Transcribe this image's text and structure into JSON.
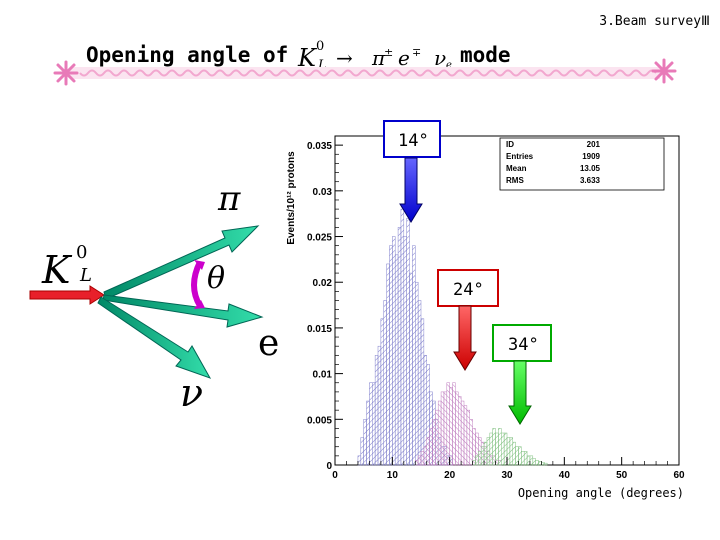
{
  "header": {
    "section_label": "3.Beam surveyⅢ"
  },
  "title": {
    "prefix": "Opening angle of",
    "decay_K": "K",
    "decay_K_sup": "0",
    "decay_K_sub": "L",
    "decay_arrow": "→",
    "decay_pi": "π",
    "decay_pi_sup": "±",
    "decay_e": "e",
    "decay_e_sup": "∓",
    "decay_nu": "ν",
    "decay_nu_sub": "e",
    "suffix": "mode"
  },
  "diagram": {
    "kaon_K": "K",
    "kaon_sup": "0",
    "kaon_sub": "L",
    "pion": "π",
    "electron": "e",
    "neutrino": "ν",
    "angle": "θ"
  },
  "annotations": [
    {
      "text": "14°",
      "value": 14,
      "color": "#0000cc"
    },
    {
      "text": "24°",
      "value": 24,
      "color": "#cc0000"
    },
    {
      "text": "34°",
      "value": 34,
      "color": "#00aa00"
    }
  ],
  "chart_data": {
    "type": "histogram",
    "xlabel": "Opening angle (degrees)",
    "ylabel": "Events/10¹² protons",
    "xlim": [
      0,
      60
    ],
    "ylim": [
      0,
      0.036
    ],
    "x_ticks": [
      0,
      10,
      20,
      30,
      40,
      50,
      60
    ],
    "y_ticks": [
      0,
      0.005,
      0.01,
      0.015,
      0.02,
      0.025,
      0.03,
      0.035
    ],
    "y_tick_labels": [
      "0",
      "0.005",
      "0.01",
      "0.015",
      "0.02",
      "0.025",
      "0.03",
      "0.035"
    ],
    "stats_box": [
      {
        "key": "ID",
        "value": "201"
      },
      {
        "key": "Entries",
        "value": "1909"
      },
      {
        "key": "Mean",
        "value": "13.05"
      },
      {
        "key": "RMS",
        "value": "3.633"
      }
    ],
    "bin_width": 0.5,
    "series": [
      {
        "color": "#8080cc",
        "x_start": 4,
        "values": [
          0.001,
          0.003,
          0.005,
          0.007,
          0.009,
          0.009,
          0.012,
          0.013,
          0.016,
          0.018,
          0.022,
          0.024,
          0.025,
          0.023,
          0.026,
          0.028,
          0.025,
          0.027,
          0.021,
          0.024,
          0.02,
          0.018,
          0.016,
          0.012,
          0.011,
          0.008,
          0.007,
          0.005,
          0.003,
          0.002,
          0.002,
          0.001,
          0.001
        ]
      },
      {
        "color": "#c080c0",
        "x_start": 14,
        "values": [
          0.0005,
          0.001,
          0.0015,
          0.002,
          0.003,
          0.004,
          0.005,
          0.006,
          0.007,
          0.008,
          0.008,
          0.009,
          0.0085,
          0.009,
          0.008,
          0.0075,
          0.007,
          0.0065,
          0.006,
          0.005,
          0.004,
          0.0035,
          0.003,
          0.0025,
          0.002,
          0.0015,
          0.001,
          0.001,
          0.0005,
          0.0005
        ]
      },
      {
        "color": "#80c080",
        "x_start": 24,
        "values": [
          0.0005,
          0.001,
          0.0015,
          0.002,
          0.0025,
          0.003,
          0.0035,
          0.004,
          0.0035,
          0.004,
          0.0035,
          0.0035,
          0.003,
          0.003,
          0.0025,
          0.002,
          0.002,
          0.0015,
          0.0015,
          0.001,
          0.001,
          0.0007,
          0.0005,
          0.0004,
          0.0003,
          0.0002
        ]
      }
    ]
  }
}
